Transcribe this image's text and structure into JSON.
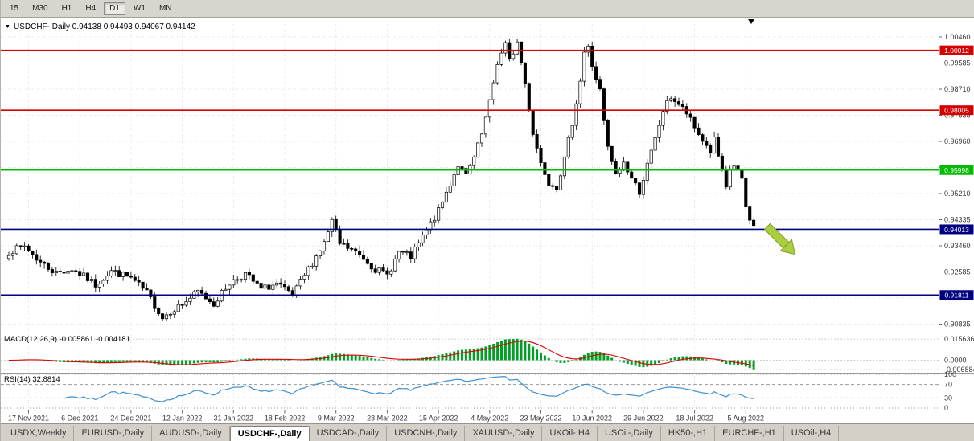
{
  "toolbar": {
    "periods": [
      {
        "label": "15",
        "active": false
      },
      {
        "label": "M30",
        "active": false
      },
      {
        "label": "H1",
        "active": false
      },
      {
        "label": "H4",
        "active": false
      },
      {
        "label": "D1",
        "active": true
      },
      {
        "label": "W1",
        "active": false
      },
      {
        "label": "MN",
        "active": false
      }
    ]
  },
  "chart_data": {
    "type": "candlestick",
    "symbol_title": "USDCHF-,Daily",
    "ohlc_text": "0.94138 0.94493 0.94067 0.94142",
    "open": 0.94138,
    "high": 0.94493,
    "low": 0.94067,
    "close": 0.94142,
    "x_tick_labels": [
      "17 Nov 2021",
      "6 Dec 2021",
      "24 Dec 2021",
      "12 Jan 2022",
      "31 Jan 2022",
      "18 Feb 2022",
      "9 Mar 2022",
      "28 Mar 2022",
      "15 Apr 2022",
      "4 May 2022",
      "23 May 2022",
      "10 Jun 2022",
      "29 Jun 2022",
      "18 Jul 2022",
      "5 Aug 2022"
    ],
    "x_tick_first_index": 5,
    "x_tick_step": 13,
    "candle_count": 190,
    "last_close": 0.94142,
    "close_waypoints": [
      [
        0,
        0.9325
      ],
      [
        4,
        0.9345
      ],
      [
        8,
        0.929
      ],
      [
        12,
        0.9255
      ],
      [
        16,
        0.9268
      ],
      [
        20,
        0.9235
      ],
      [
        22,
        0.9215
      ],
      [
        26,
        0.9262
      ],
      [
        31,
        0.9238
      ],
      [
        35,
        0.9188
      ],
      [
        39,
        0.9105
      ],
      [
        41,
        0.9128
      ],
      [
        44,
        0.915
      ],
      [
        48,
        0.9192
      ],
      [
        52,
        0.9152
      ],
      [
        56,
        0.9222
      ],
      [
        60,
        0.9252
      ],
      [
        64,
        0.92
      ],
      [
        68,
        0.9218
      ],
      [
        72,
        0.9178
      ],
      [
        76,
        0.9268
      ],
      [
        80,
        0.9355
      ],
      [
        82,
        0.9428
      ],
      [
        84,
        0.9352
      ],
      [
        87,
        0.9332
      ],
      [
        90,
        0.9305
      ],
      [
        93,
        0.9268
      ],
      [
        96,
        0.9248
      ],
      [
        99,
        0.9325
      ],
      [
        102,
        0.9308
      ],
      [
        105,
        0.9375
      ],
      [
        109,
        0.9462
      ],
      [
        112,
        0.9555
      ],
      [
        114,
        0.9618
      ],
      [
        116,
        0.9578
      ],
      [
        118,
        0.964
      ],
      [
        120,
        0.9718
      ],
      [
        122,
        0.9825
      ],
      [
        124,
        0.996
      ],
      [
        126,
        1.002
      ],
      [
        127,
        0.9965
      ],
      [
        129,
        1.0028
      ],
      [
        131,
        0.989
      ],
      [
        133,
        0.9725
      ],
      [
        135,
        0.9625
      ],
      [
        137,
        0.956
      ],
      [
        139,
        0.9545
      ],
      [
        141,
        0.9635
      ],
      [
        143,
        0.976
      ],
      [
        145,
        0.99
      ],
      [
        146,
        0.9995
      ],
      [
        147,
        1.001
      ],
      [
        148,
        0.995
      ],
      [
        150,
        0.9865
      ],
      [
        151,
        0.976
      ],
      [
        152,
        0.9672
      ],
      [
        154,
        0.9582
      ],
      [
        156,
        0.9625
      ],
      [
        158,
        0.9572
      ],
      [
        160,
        0.9528
      ],
      [
        162,
        0.9615
      ],
      [
        164,
        0.9702
      ],
      [
        166,
        0.98
      ],
      [
        168,
        0.9845
      ],
      [
        170,
        0.982
      ],
      [
        172,
        0.979
      ],
      [
        174,
        0.974
      ],
      [
        176,
        0.97
      ],
      [
        178,
        0.9662
      ],
      [
        179,
        0.9702
      ],
      [
        180,
        0.9645
      ],
      [
        181,
        0.9592
      ],
      [
        182,
        0.9535
      ],
      [
        183,
        0.9602
      ],
      [
        184,
        0.9615
      ],
      [
        185,
        0.9598
      ],
      [
        186,
        0.9562
      ],
      [
        187,
        0.9475
      ],
      [
        188,
        0.9428
      ],
      [
        189,
        0.94142
      ]
    ],
    "price_axis": {
      "ticks": [
        1.0046,
        0.99585,
        0.9871,
        0.97835,
        0.9696,
        0.96085,
        0.9521,
        0.94335,
        0.9346,
        0.92585,
        0.9171,
        0.90835
      ],
      "step": 0.00875,
      "decimals": 5
    },
    "hlines": [
      {
        "price": 1.00012,
        "color": "#d40000"
      },
      {
        "price": 0.98005,
        "color": "#d40000"
      },
      {
        "price": 0.95998,
        "color": "#00bb00"
      },
      {
        "price": 0.94013,
        "color": "#000080"
      },
      {
        "price": 0.91811,
        "color": "#000080"
      }
    ],
    "candle_colors": {
      "bull_fill": "#ffffff",
      "bear_fill": "#000000",
      "outline": "#000000"
    },
    "arrow": {
      "fill": "#aace3c",
      "stroke": "#7d9b2d"
    },
    "macd": {
      "label": "MACD(12,26,9)",
      "values_text": "-0.005861 -0.004181",
      "fast": 12,
      "slow": 26,
      "signal": 9,
      "ticks": [
        {
          "v": 0.015636,
          "label": "0.015636"
        },
        {
          "v": 0,
          "label": "0.0000"
        },
        {
          "v": -0.006884,
          "label": "-0.006884"
        }
      ],
      "hist_color": "#00a226",
      "signal_color": "#dd0000"
    },
    "rsi": {
      "label": "RSI(14)",
      "value_text": "32.8814",
      "period": 14,
      "levels": [
        100,
        70,
        30,
        0
      ],
      "line_color": "#3c8fd4"
    }
  },
  "tabs": {
    "items": [
      {
        "label": "USDX,Weekly",
        "active": false
      },
      {
        "label": "EURUSD-,Daily",
        "active": false
      },
      {
        "label": "AUDUSD-,Daily",
        "active": false
      },
      {
        "label": "USDCHF-,Daily",
        "active": true
      },
      {
        "label": "USDCAD-,Daily",
        "active": false
      },
      {
        "label": "USDCNH-,Daily",
        "active": false
      },
      {
        "label": "XAUUSD-,Daily",
        "active": false
      },
      {
        "label": "UKOil-,H4",
        "active": false
      },
      {
        "label": "USOil-,Daily",
        "active": false
      },
      {
        "label": "HK50-,H1",
        "active": false
      },
      {
        "label": "EURCHF-,H1",
        "active": false
      },
      {
        "label": "USOil-,H4",
        "active": false
      }
    ]
  }
}
